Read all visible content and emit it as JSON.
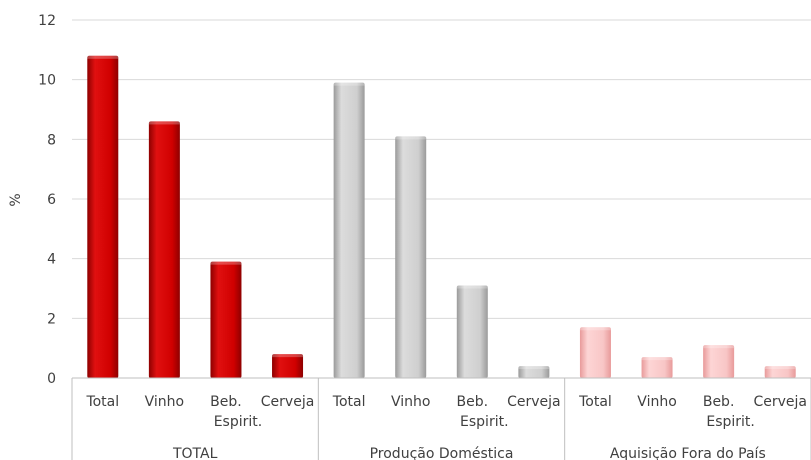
{
  "chart_data": {
    "type": "bar",
    "title": "",
    "xlabel": "",
    "ylabel": "%",
    "ylim": [
      0,
      12
    ],
    "yticks": [
      0,
      2,
      4,
      6,
      8,
      10,
      12
    ],
    "grid": true,
    "legend": "none",
    "groups": [
      {
        "name": "TOTAL",
        "color": "#cc0000",
        "categories": [
          {
            "label": "Total",
            "value": 10.8
          },
          {
            "label": "Vinho",
            "value": 8.6
          },
          {
            "label": "Beb. Espirit.",
            "lines": [
              "Beb.",
              "Espirit."
            ],
            "value": 3.9
          },
          {
            "label": "Cerveja",
            "value": 0.8
          }
        ]
      },
      {
        "name": "Produção Doméstica",
        "color": "#bfbfbf",
        "categories": [
          {
            "label": "Total",
            "value": 9.9
          },
          {
            "label": "Vinho",
            "value": 8.1
          },
          {
            "label": "Beb. Espirit.",
            "lines": [
              "Beb.",
              "Espirit."
            ],
            "value": 3.1
          },
          {
            "label": "Cerveja",
            "value": 0.4
          }
        ]
      },
      {
        "name": "Aquisição Fora do País",
        "color": "#f7b9b9",
        "categories": [
          {
            "label": "Total",
            "value": 1.7
          },
          {
            "label": "Vinho",
            "value": 0.7
          },
          {
            "label": "Beb. Espirit.",
            "lines": [
              "Beb.",
              "Espirit."
            ],
            "value": 1.1
          },
          {
            "label": "Cerveja",
            "value": 0.4
          }
        ]
      }
    ]
  }
}
